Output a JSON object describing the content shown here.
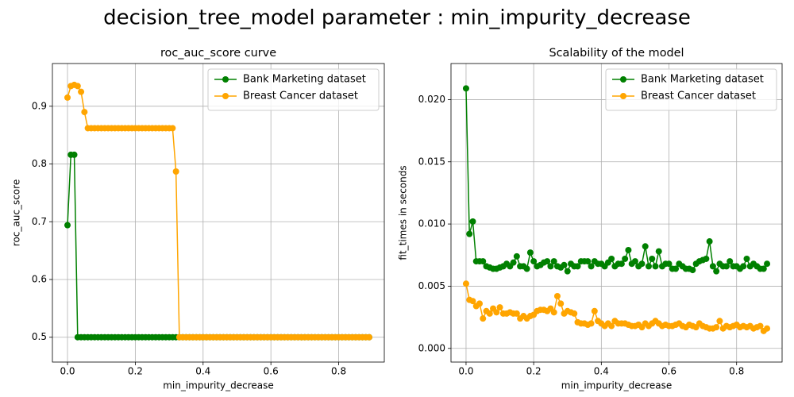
{
  "title": "decision_tree_model parameter : min_impurity_decrease",
  "chart_data": [
    {
      "type": "line",
      "title": "roc_auc_score curve",
      "x_label": "min_impurity_decrease",
      "y_label": "roc_auc_score",
      "x": [
        0,
        0.01,
        0.02,
        0.03,
        0.04,
        0.05,
        0.06,
        0.07,
        0.08,
        0.09,
        0.1,
        0.11,
        0.12,
        0.13,
        0.14,
        0.15,
        0.16,
        0.17,
        0.18,
        0.19,
        0.2,
        0.21,
        0.22,
        0.23,
        0.24,
        0.25,
        0.26,
        0.27,
        0.28,
        0.29,
        0.3,
        0.31,
        0.32,
        0.33,
        0.34,
        0.35,
        0.36,
        0.37,
        0.38,
        0.39,
        0.4,
        0.41,
        0.42,
        0.43,
        0.44,
        0.45,
        0.46,
        0.47,
        0.48,
        0.49,
        0.5,
        0.51,
        0.52,
        0.53,
        0.54,
        0.55,
        0.56,
        0.57,
        0.58,
        0.59,
        0.6,
        0.61,
        0.62,
        0.63,
        0.64,
        0.65,
        0.66,
        0.67,
        0.68,
        0.69,
        0.7,
        0.71,
        0.72,
        0.73,
        0.74,
        0.75,
        0.76,
        0.77,
        0.78,
        0.79,
        0.8,
        0.81,
        0.82,
        0.83,
        0.84,
        0.85,
        0.86,
        0.87,
        0.88,
        0.89
      ],
      "series": [
        {
          "name": "Bank Marketing dataset",
          "color": "#008000",
          "values": [
            0.694,
            0.816,
            0.816,
            0.5,
            0.5,
            0.5,
            0.5,
            0.5,
            0.5,
            0.5,
            0.5,
            0.5,
            0.5,
            0.5,
            0.5,
            0.5,
            0.5,
            0.5,
            0.5,
            0.5,
            0.5,
            0.5,
            0.5,
            0.5,
            0.5,
            0.5,
            0.5,
            0.5,
            0.5,
            0.5,
            0.5,
            0.5,
            0.5,
            0.5,
            0.5,
            0.5,
            0.5,
            0.5,
            0.5,
            0.5,
            0.5,
            0.5,
            0.5,
            0.5,
            0.5,
            0.5,
            0.5,
            0.5,
            0.5,
            0.5,
            0.5,
            0.5,
            0.5,
            0.5,
            0.5,
            0.5,
            0.5,
            0.5,
            0.5,
            0.5,
            0.5,
            0.5,
            0.5,
            0.5,
            0.5,
            0.5,
            0.5,
            0.5,
            0.5,
            0.5,
            0.5,
            0.5,
            0.5,
            0.5,
            0.5,
            0.5,
            0.5,
            0.5,
            0.5,
            0.5,
            0.5,
            0.5,
            0.5,
            0.5,
            0.5,
            0.5,
            0.5,
            0.5,
            0.5,
            0.5
          ]
        },
        {
          "name": "Breast Cancer dataset",
          "color": "#ffa500",
          "values": [
            0.915,
            0.935,
            0.937,
            0.935,
            0.925,
            0.89,
            0.862,
            0.862,
            0.862,
            0.862,
            0.862,
            0.862,
            0.862,
            0.862,
            0.862,
            0.862,
            0.862,
            0.862,
            0.862,
            0.862,
            0.862,
            0.862,
            0.862,
            0.862,
            0.862,
            0.862,
            0.862,
            0.862,
            0.862,
            0.862,
            0.862,
            0.862,
            0.787,
            0.5,
            0.5,
            0.5,
            0.5,
            0.5,
            0.5,
            0.5,
            0.5,
            0.5,
            0.5,
            0.5,
            0.5,
            0.5,
            0.5,
            0.5,
            0.5,
            0.5,
            0.5,
            0.5,
            0.5,
            0.5,
            0.5,
            0.5,
            0.5,
            0.5,
            0.5,
            0.5,
            0.5,
            0.5,
            0.5,
            0.5,
            0.5,
            0.5,
            0.5,
            0.5,
            0.5,
            0.5,
            0.5,
            0.5,
            0.5,
            0.5,
            0.5,
            0.5,
            0.5,
            0.5,
            0.5,
            0.5,
            0.5,
            0.5,
            0.5,
            0.5,
            0.5,
            0.5,
            0.5,
            0.5,
            0.5,
            0.5
          ]
        }
      ],
      "xlim": [
        -0.0445,
        0.9345
      ],
      "xticks": [
        {
          "value": 0,
          "label": "0.0"
        },
        0.2,
        0.4,
        0.6,
        0.8
      ],
      "ylim": [
        0.457,
        0.974
      ],
      "yticks": [
        0.5,
        0.6,
        0.7,
        0.8,
        0.9
      ],
      "grid": true,
      "legend": "upper right"
    },
    {
      "type": "line",
      "title": "Scalability of the model",
      "x_label": "min_impurity_decrease",
      "y_label": "fit_times in seconds",
      "x": [
        0,
        0.01,
        0.02,
        0.03,
        0.04,
        0.05,
        0.06,
        0.07,
        0.08,
        0.09,
        0.1,
        0.11,
        0.12,
        0.13,
        0.14,
        0.15,
        0.16,
        0.17,
        0.18,
        0.19,
        0.2,
        0.21,
        0.22,
        0.23,
        0.24,
        0.25,
        0.26,
        0.27,
        0.28,
        0.29,
        0.3,
        0.31,
        0.32,
        0.33,
        0.34,
        0.35,
        0.36,
        0.37,
        0.38,
        0.39,
        0.4,
        0.41,
        0.42,
        0.43,
        0.44,
        0.45,
        0.46,
        0.47,
        0.48,
        0.49,
        0.5,
        0.51,
        0.52,
        0.53,
        0.54,
        0.55,
        0.56,
        0.57,
        0.58,
        0.59,
        0.6,
        0.61,
        0.62,
        0.63,
        0.64,
        0.65,
        0.66,
        0.67,
        0.68,
        0.69,
        0.7,
        0.71,
        0.72,
        0.73,
        0.74,
        0.75,
        0.76,
        0.77,
        0.78,
        0.79,
        0.8,
        0.81,
        0.82,
        0.83,
        0.84,
        0.85,
        0.86,
        0.87,
        0.88,
        0.89
      ],
      "series": [
        {
          "name": "Bank Marketing dataset",
          "color": "#008000",
          "values": [
            0.0209,
            0.0092,
            0.0102,
            0.007,
            0.007,
            0.007,
            0.0066,
            0.0065,
            0.0064,
            0.0064,
            0.0065,
            0.0066,
            0.0068,
            0.0066,
            0.0069,
            0.0074,
            0.0066,
            0.0066,
            0.0064,
            0.0077,
            0.007,
            0.0066,
            0.0067,
            0.0069,
            0.007,
            0.0066,
            0.007,
            0.0066,
            0.0065,
            0.0067,
            0.0062,
            0.0068,
            0.0066,
            0.0066,
            0.007,
            0.007,
            0.007,
            0.0066,
            0.007,
            0.0068,
            0.0068,
            0.0066,
            0.0069,
            0.0072,
            0.0066,
            0.0068,
            0.0068,
            0.0072,
            0.0079,
            0.0068,
            0.007,
            0.0066,
            0.0068,
            0.0082,
            0.0066,
            0.0072,
            0.0066,
            0.0078,
            0.0066,
            0.0068,
            0.0068,
            0.0064,
            0.0064,
            0.0068,
            0.0066,
            0.0064,
            0.0064,
            0.0063,
            0.0068,
            0.007,
            0.0071,
            0.0072,
            0.0086,
            0.0066,
            0.0062,
            0.0068,
            0.0066,
            0.0066,
            0.007,
            0.0066,
            0.0066,
            0.0064,
            0.0066,
            0.0072,
            0.0066,
            0.0068,
            0.0066,
            0.0064,
            0.0064,
            0.0068
          ]
        },
        {
          "name": "Breast Cancer dataset",
          "color": "#ffa500",
          "values": [
            0.0052,
            0.0039,
            0.0038,
            0.0034,
            0.0036,
            0.0024,
            0.003,
            0.0028,
            0.0032,
            0.0029,
            0.0033,
            0.0028,
            0.0028,
            0.0029,
            0.0028,
            0.0028,
            0.0024,
            0.0026,
            0.0024,
            0.0026,
            0.0027,
            0.003,
            0.0031,
            0.0031,
            0.003,
            0.0032,
            0.0029,
            0.0042,
            0.0036,
            0.0028,
            0.003,
            0.0029,
            0.0028,
            0.0021,
            0.002,
            0.002,
            0.0019,
            0.002,
            0.003,
            0.0022,
            0.002,
            0.0018,
            0.002,
            0.0018,
            0.0022,
            0.002,
            0.002,
            0.002,
            0.0019,
            0.0018,
            0.0018,
            0.0019,
            0.0017,
            0.002,
            0.0018,
            0.002,
            0.0022,
            0.002,
            0.0018,
            0.0019,
            0.0018,
            0.0018,
            0.0019,
            0.002,
            0.0018,
            0.0017,
            0.0019,
            0.0018,
            0.0017,
            0.002,
            0.0018,
            0.0017,
            0.0016,
            0.0016,
            0.0017,
            0.0022,
            0.0016,
            0.0018,
            0.0017,
            0.0018,
            0.0019,
            0.0017,
            0.0018,
            0.0017,
            0.0018,
            0.0016,
            0.0017,
            0.0018,
            0.0014,
            0.0016
          ]
        }
      ],
      "xlim": [
        -0.0445,
        0.9345
      ],
      "xticks": [
        {
          "value": 0,
          "label": "0.0"
        },
        0.2,
        0.4,
        0.6,
        0.8
      ],
      "ylim": [
        -0.0011,
        0.0229
      ],
      "yticks": [
        {
          "value": 0,
          "label": "0.000"
        },
        {
          "value": 0.005,
          "label": "0.005"
        },
        {
          "value": 0.01,
          "label": "0.010"
        },
        {
          "value": 0.015,
          "label": "0.015"
        },
        {
          "value": 0.02,
          "label": "0.020"
        }
      ],
      "grid": true,
      "legend": "upper right"
    }
  ]
}
